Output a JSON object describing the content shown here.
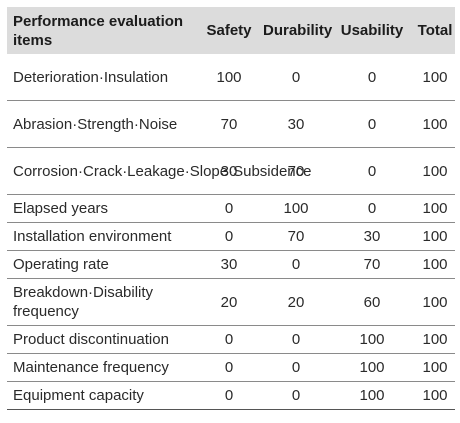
{
  "table": {
    "headers": {
      "item": "Performance evaluation items",
      "safety": "Safety",
      "durability": "Durability",
      "usability": "Usability",
      "total": "Total"
    },
    "rows": [
      {
        "item": "Deterioration·Insulation",
        "safety": "100",
        "durability": "0",
        "usability": "0",
        "total": "100"
      },
      {
        "item": "Abrasion·Strength·Noise",
        "safety": "70",
        "durability": "30",
        "usability": "0",
        "total": "100"
      },
      {
        "item": "Corrosion·Crack·Leakage·Slope·Subsidence",
        "safety": "30",
        "durability": "70",
        "usability": "0",
        "total": "100"
      },
      {
        "item": "Elapsed years",
        "safety": "0",
        "durability": "100",
        "usability": "0",
        "total": "100"
      },
      {
        "item": "Installation environment",
        "safety": "0",
        "durability": "70",
        "usability": "30",
        "total": "100"
      },
      {
        "item": "Operating rate",
        "safety": "30",
        "durability": "0",
        "usability": "70",
        "total": "100"
      },
      {
        "item": "Breakdown·Disability frequency",
        "safety": "20",
        "durability": "20",
        "usability": "60",
        "total": "100"
      },
      {
        "item": "Product discontinuation",
        "safety": "0",
        "durability": "0",
        "usability": "100",
        "total": "100"
      },
      {
        "item": "Maintenance frequency",
        "safety": "0",
        "durability": "0",
        "usability": "100",
        "total": "100"
      },
      {
        "item": "Equipment capacity",
        "safety": "0",
        "durability": "0",
        "usability": "100",
        "total": "100"
      }
    ]
  }
}
